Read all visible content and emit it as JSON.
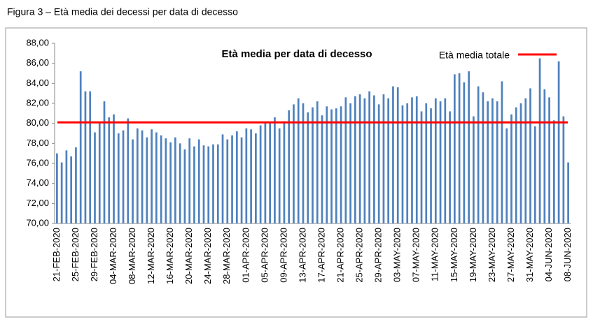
{
  "chart_data": {
    "type": "bar",
    "figure_caption": "Figura 3 – Età media dei decessi per data di decesso",
    "title": "Età media per data di decesso",
    "categories": [
      "21-FEB-2020",
      null,
      null,
      null,
      "25-FEB-2020",
      null,
      null,
      null,
      "29-FEB-2020",
      null,
      null,
      null,
      "04-MAR-2020",
      null,
      null,
      null,
      "08-MAR-2020",
      null,
      null,
      null,
      "12-MAR-2020",
      null,
      null,
      null,
      "16-MAR-2020",
      null,
      null,
      null,
      "20-MAR-2020",
      null,
      null,
      null,
      "24-MAR-2020",
      null,
      null,
      null,
      "28-MAR-2020",
      null,
      null,
      null,
      "01-APR-2020",
      null,
      null,
      null,
      "05-APR-2020",
      null,
      null,
      null,
      "09-APR-2020",
      null,
      null,
      null,
      "13-APR-2020",
      null,
      null,
      null,
      "17-APR-2020",
      null,
      null,
      null,
      "21-APR-2020",
      null,
      null,
      null,
      "25-APR-2020",
      null,
      null,
      null,
      "29-APR-2020",
      null,
      null,
      null,
      "03-MAY-2020",
      null,
      null,
      null,
      "07-MAY-2020",
      null,
      null,
      null,
      "11-MAY-2020",
      null,
      null,
      null,
      "15-MAY-2020",
      null,
      null,
      null,
      "19-MAY-2020",
      null,
      null,
      null,
      "23-MAY-2020",
      null,
      null,
      null,
      "27-MAY-2020",
      null,
      null,
      null,
      "31-MAY-2020",
      null,
      null,
      null,
      "04-JUN-2020",
      null,
      null,
      null,
      "08-JUN-2020"
    ],
    "values": [
      77.0,
      76.1,
      77.3,
      76.7,
      77.6,
      85.2,
      83.2,
      83.2,
      79.1,
      80.1,
      82.2,
      80.6,
      80.9,
      79.0,
      79.3,
      80.5,
      78.4,
      79.5,
      79.3,
      78.6,
      79.4,
      79.1,
      78.8,
      78.5,
      78.1,
      78.6,
      78.0,
      77.4,
      78.5,
      77.7,
      78.4,
      77.8,
      77.7,
      77.9,
      77.9,
      78.9,
      78.4,
      78.8,
      79.2,
      78.6,
      79.5,
      79.4,
      79.0,
      79.8,
      80.0,
      80.0,
      80.6,
      79.5,
      80.2,
      81.3,
      81.9,
      82.5,
      82.0,
      81.1,
      81.6,
      82.2,
      80.8,
      81.7,
      81.4,
      81.5,
      81.7,
      82.6,
      82.0,
      82.7,
      82.9,
      82.5,
      83.2,
      82.8,
      81.9,
      82.9,
      82.5,
      83.7,
      83.6,
      81.8,
      82.0,
      82.6,
      82.7,
      81.2,
      82.0,
      81.5,
      82.5,
      82.2,
      82.5,
      81.2,
      84.9,
      85.0,
      84.1,
      85.2,
      80.7,
      83.7,
      83.1,
      82.2,
      82.5,
      82.2,
      84.2,
      79.5,
      80.9,
      81.6,
      82.0,
      82.5,
      83.5,
      79.7,
      86.5,
      83.4,
      82.6,
      80.3,
      86.2,
      80.7,
      76.1
    ],
    "color": "#4f81bd",
    "reference_line": {
      "name": "Età media totale",
      "value": 80.1,
      "color": "#ff0000"
    },
    "ylim": [
      70,
      88
    ],
    "yticks": [
      {
        "value": 70,
        "label": "70,00"
      },
      {
        "value": 72,
        "label": "72,00"
      },
      {
        "value": 74,
        "label": "74,00"
      },
      {
        "value": 76,
        "label": "76,00"
      },
      {
        "value": 78,
        "label": "78,00"
      },
      {
        "value": 80,
        "label": "80,00"
      },
      {
        "value": 82,
        "label": "82,00"
      },
      {
        "value": 84,
        "label": "84,00"
      },
      {
        "value": 86,
        "label": "86,00"
      },
      {
        "value": 88,
        "label": "88,00"
      }
    ],
    "grid": false
  }
}
